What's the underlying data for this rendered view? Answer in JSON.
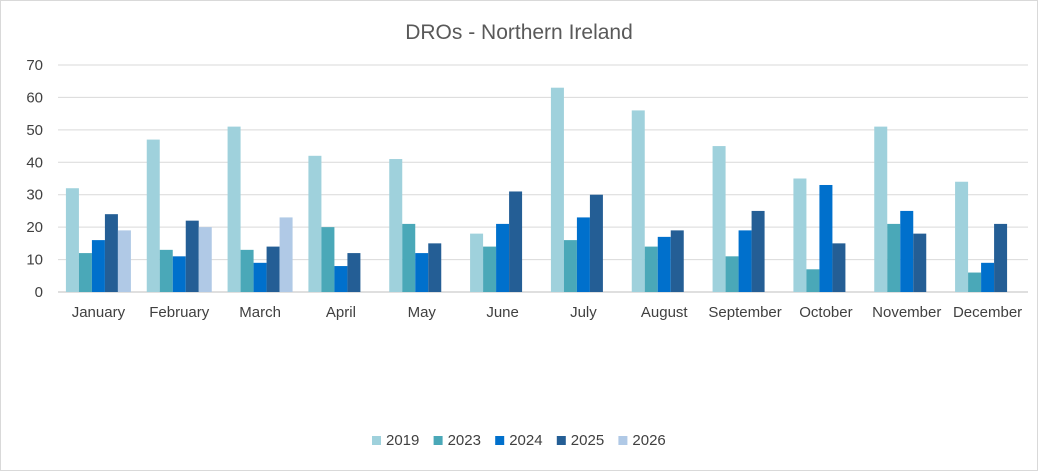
{
  "chart_data": {
    "type": "bar",
    "title": "DROs - Northern Ireland",
    "xlabel": "",
    "ylabel": "",
    "categories": [
      "January",
      "February",
      "March",
      "April",
      "May",
      "June",
      "July",
      "August",
      "September",
      "October",
      "November",
      "December"
    ],
    "ylim": [
      0,
      70
    ],
    "yticks": [
      "0",
      "10",
      "20",
      "30",
      "40",
      "50",
      "60",
      "70"
    ],
    "grid": true,
    "legend_position": "bottom",
    "series": [
      {
        "name": "2019",
        "color": "#9fd1dc",
        "values": [
          32,
          47,
          51,
          42,
          41,
          18,
          63,
          56,
          45,
          35,
          51,
          34
        ]
      },
      {
        "name": "2023",
        "color": "#4aa8b8",
        "values": [
          12,
          13,
          13,
          20,
          21,
          14,
          16,
          14,
          11,
          7,
          21,
          6
        ]
      },
      {
        "name": "2024",
        "color": "#0070cc",
        "values": [
          16,
          11,
          9,
          8,
          12,
          21,
          23,
          17,
          19,
          33,
          25,
          9
        ]
      },
      {
        "name": "2025",
        "color": "#245e95",
        "values": [
          24,
          22,
          14,
          12,
          15,
          31,
          30,
          19,
          25,
          15,
          18,
          21
        ]
      },
      {
        "name": "2026",
        "color": "#b0c9e6",
        "values": [
          19,
          20,
          23,
          null,
          null,
          null,
          null,
          null,
          null,
          null,
          null,
          null
        ]
      }
    ]
  }
}
